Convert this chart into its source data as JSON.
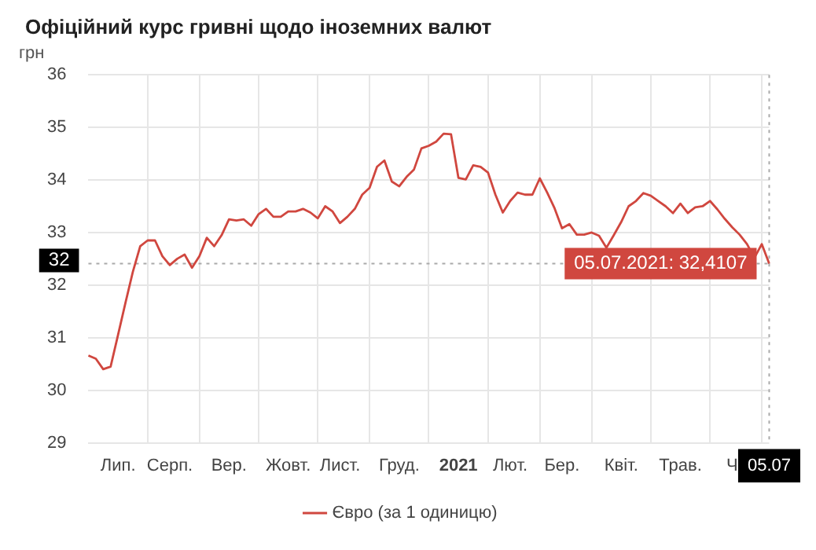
{
  "chart_data": {
    "type": "line",
    "title": "Офіційний курс гривні щодо іноземних валют",
    "ylabel": "грн",
    "categories": [
      null,
      null,
      null,
      null,
      "Лип.",
      null,
      null,
      null,
      null,
      null,
      null,
      "Серп.",
      null,
      null,
      null,
      null,
      null,
      null,
      null,
      "Вер.",
      null,
      null,
      null,
      null,
      null,
      null,
      null,
      "Жовт.",
      null,
      null,
      null,
      null,
      null,
      null,
      "Лист.",
      null,
      null,
      null,
      null,
      null,
      null,
      null,
      "Груд.",
      null,
      null,
      null,
      null,
      null,
      null,
      null,
      "2021",
      null,
      null,
      null,
      null,
      null,
      null,
      "Лют.",
      null,
      null,
      null,
      null,
      null,
      null,
      "Бер.",
      null,
      null,
      null,
      null,
      null,
      null,
      null,
      "Квіт.",
      null,
      null,
      null,
      null,
      null,
      null,
      null,
      "Трав.",
      null,
      null,
      null,
      null,
      null,
      null,
      "Ч",
      null,
      null,
      null,
      null,
      "05.07"
    ],
    "series": [
      {
        "name": "Євро (за 1 одиницю)",
        "color": "#d0473f",
        "values": [
          30.66,
          30.6,
          30.4,
          30.45,
          31.05,
          31.66,
          32.25,
          32.74,
          32.85,
          32.85,
          32.55,
          32.38,
          32.5,
          32.58,
          32.33,
          32.55,
          32.9,
          32.74,
          32.95,
          33.25,
          33.23,
          33.25,
          33.13,
          33.35,
          33.45,
          33.3,
          33.3,
          33.4,
          33.4,
          33.45,
          33.38,
          33.27,
          33.5,
          33.4,
          33.18,
          33.3,
          33.45,
          33.72,
          33.85,
          34.25,
          34.37,
          33.97,
          33.88,
          34.06,
          34.2,
          34.6,
          34.65,
          34.73,
          34.88,
          34.87,
          34.04,
          34.01,
          34.28,
          34.25,
          34.14,
          33.72,
          33.38,
          33.6,
          33.76,
          33.72,
          33.72,
          34.03,
          33.76,
          33.46,
          33.08,
          33.16,
          32.96,
          32.96,
          33.0,
          32.94,
          32.71,
          32.95,
          33.2,
          33.5,
          33.6,
          33.75,
          33.7,
          33.6,
          33.5,
          33.37,
          33.55,
          33.37,
          33.48,
          33.5,
          33.6,
          33.44,
          33.26,
          33.1,
          32.96,
          32.78,
          32.52,
          32.78,
          32.41
        ]
      }
    ],
    "ylim": [
      29,
      36
    ],
    "yticks": [
      29,
      30,
      31,
      32,
      33,
      34,
      35,
      36
    ],
    "grid": true,
    "legend": "bottom",
    "marker": "none",
    "line_style": "solid",
    "ref_lines": [
      {
        "axis": "y",
        "value": 32.41,
        "label": "32",
        "line_style": "dotted"
      },
      {
        "axis": "x",
        "value": "05.07",
        "line_style": "dotted"
      }
    ],
    "annotations": [
      {
        "text": "05.07.2021: 32,4107",
        "x": "05.07",
        "y": 32.41
      }
    ]
  }
}
